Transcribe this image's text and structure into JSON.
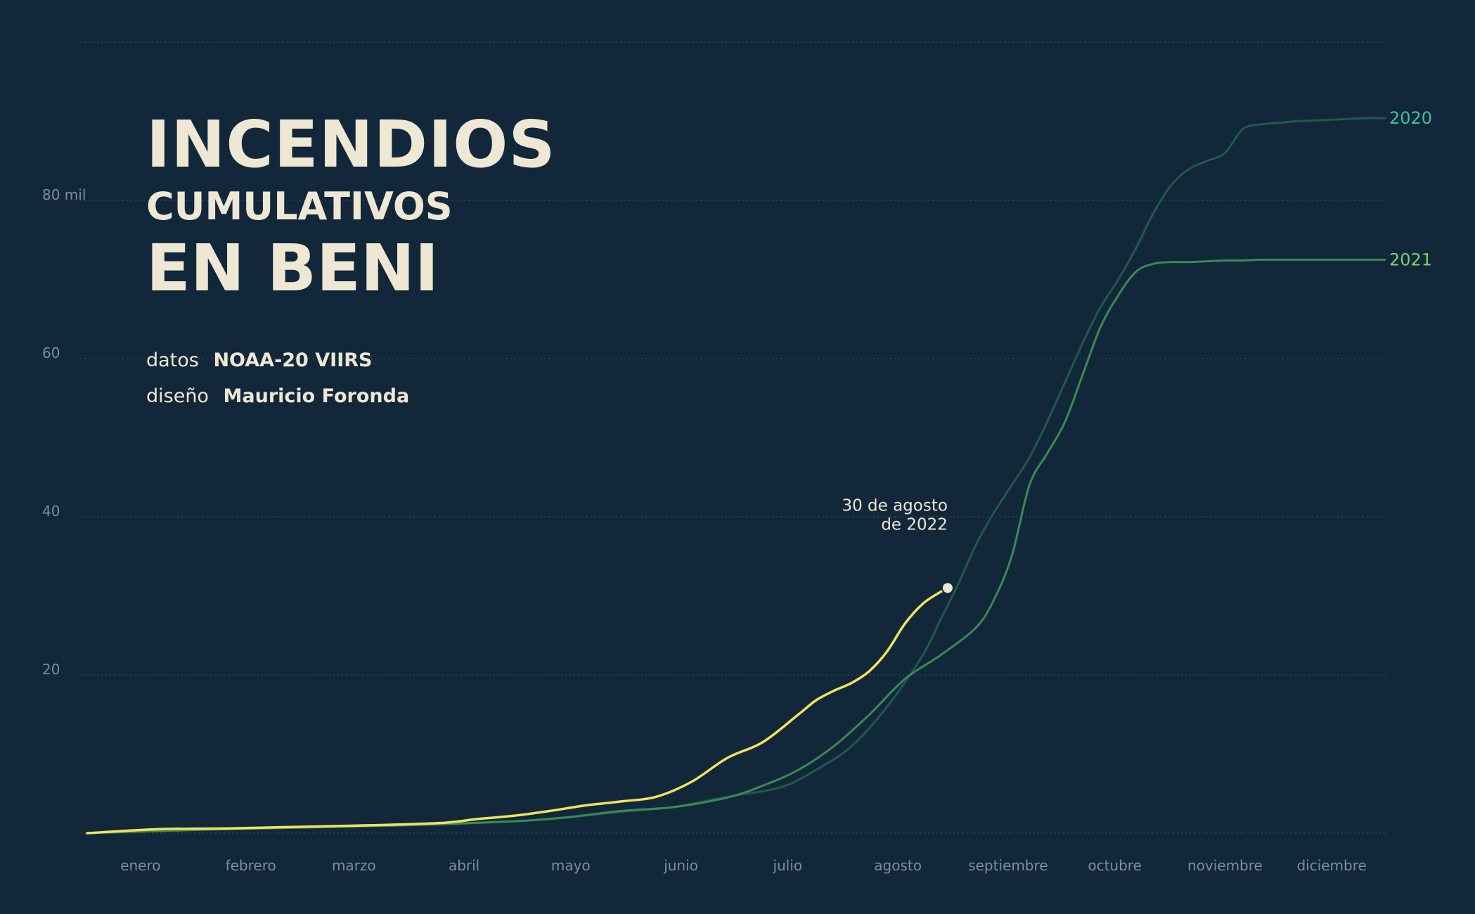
{
  "title": {
    "line1": "INCENDIOS",
    "line2": "CUMULATIVOS",
    "line3": "EN BENI"
  },
  "credits": {
    "data_label": "datos",
    "data_value": "NOAA-20 VIIRS",
    "design_label": "diseño",
    "design_value": "Mauricio Foronda"
  },
  "annotation": {
    "line1": "30 de agosto",
    "line2": "de 2022"
  },
  "colors": {
    "background": "#12283a",
    "grid": "#2c4455",
    "tick_text": "#7f8e96",
    "title_text": "#ede7d4",
    "series_2020": "#1f5a4c",
    "series_2020_label": "#3cc39c",
    "series_2021": "#3a8a52",
    "series_2021_label": "#73d272",
    "series_2022": "#efe35e",
    "marker_fill": "#ede7d4"
  },
  "chart_data": {
    "type": "line",
    "title": "INCENDIOS CUMULATIVOS EN BENI",
    "xlabel": "",
    "ylabel": "",
    "xlim": [
      0,
      365
    ],
    "ylim": [
      0,
      100
    ],
    "grid": true,
    "x_ticks": [
      {
        "label": "enero",
        "x": 15
      },
      {
        "label": "febrero",
        "x": 46
      },
      {
        "label": "marzo",
        "x": 75
      },
      {
        "label": "abril",
        "x": 106
      },
      {
        "label": "mayo",
        "x": 136
      },
      {
        "label": "junio",
        "x": 167
      },
      {
        "label": "julio",
        "x": 197
      },
      {
        "label": "agosto",
        "x": 228
      },
      {
        "label": "septiembre",
        "x": 259
      },
      {
        "label": "octubre",
        "x": 289
      },
      {
        "label": "noviembre",
        "x": 320
      },
      {
        "label": "diciembre",
        "x": 350
      }
    ],
    "y_ticks": [
      {
        "label": "20",
        "value": 20
      },
      {
        "label": "40",
        "value": 40
      },
      {
        "label": "60",
        "value": 60
      },
      {
        "label": "80 mil",
        "value": 80
      }
    ],
    "series": [
      {
        "name": "2020",
        "x": [
          0,
          30,
          60,
          90,
          120,
          135,
          150,
          165,
          180,
          195,
          205,
          215,
          225,
          235,
          240,
          245,
          250,
          255,
          260,
          265,
          270,
          275,
          280,
          285,
          290,
          295,
          300,
          305,
          310,
          315,
          320,
          325,
          330,
          335,
          340,
          345,
          350,
          355,
          360,
          365
        ],
        "y": [
          0,
          0.4,
          0.8,
          1.0,
          1.5,
          2.0,
          2.7,
          3.3,
          4.6,
          5.8,
          8.0,
          11.0,
          16.0,
          22.5,
          27.0,
          31.5,
          36.5,
          40.5,
          44.0,
          47.5,
          52.0,
          57.0,
          62.0,
          66.5,
          70.0,
          74.0,
          78.5,
          82.0,
          84.0,
          85.0,
          86.0,
          89.0,
          89.6,
          89.8,
          90.0,
          90.1,
          90.2,
          90.3,
          90.4,
          90.4
        ]
      },
      {
        "name": "2021",
        "x": [
          0,
          30,
          60,
          90,
          120,
          135,
          150,
          165,
          180,
          190,
          200,
          210,
          220,
          230,
          240,
          250,
          255,
          260,
          265,
          270,
          275,
          280,
          285,
          290,
          295,
          300,
          305,
          310,
          315,
          320,
          325,
          330,
          340,
          350,
          365
        ],
        "y": [
          0,
          0.4,
          0.7,
          1.0,
          1.5,
          2.0,
          2.8,
          3.3,
          4.5,
          6.0,
          8.0,
          11.0,
          15.0,
          19.5,
          22.5,
          26.0,
          29.5,
          35.0,
          44.0,
          48.0,
          52.0,
          58.0,
          64.0,
          68.0,
          71.0,
          72.0,
          72.2,
          72.2,
          72.3,
          72.4,
          72.4,
          72.5,
          72.5,
          72.5,
          72.5
        ]
      },
      {
        "name": "2022",
        "x": [
          0,
          20,
          40,
          60,
          80,
          100,
          110,
          120,
          130,
          140,
          150,
          160,
          170,
          180,
          190,
          200,
          205,
          210,
          215,
          220,
          225,
          230,
          235,
          240,
          242
        ],
        "y": [
          0,
          0.5,
          0.6,
          0.8,
          1.0,
          1.3,
          1.8,
          2.2,
          2.8,
          3.5,
          4.0,
          4.6,
          6.5,
          9.5,
          11.5,
          15.0,
          16.8,
          18.0,
          19.0,
          20.5,
          23.0,
          26.5,
          29.0,
          30.5,
          31.0
        ]
      }
    ]
  }
}
